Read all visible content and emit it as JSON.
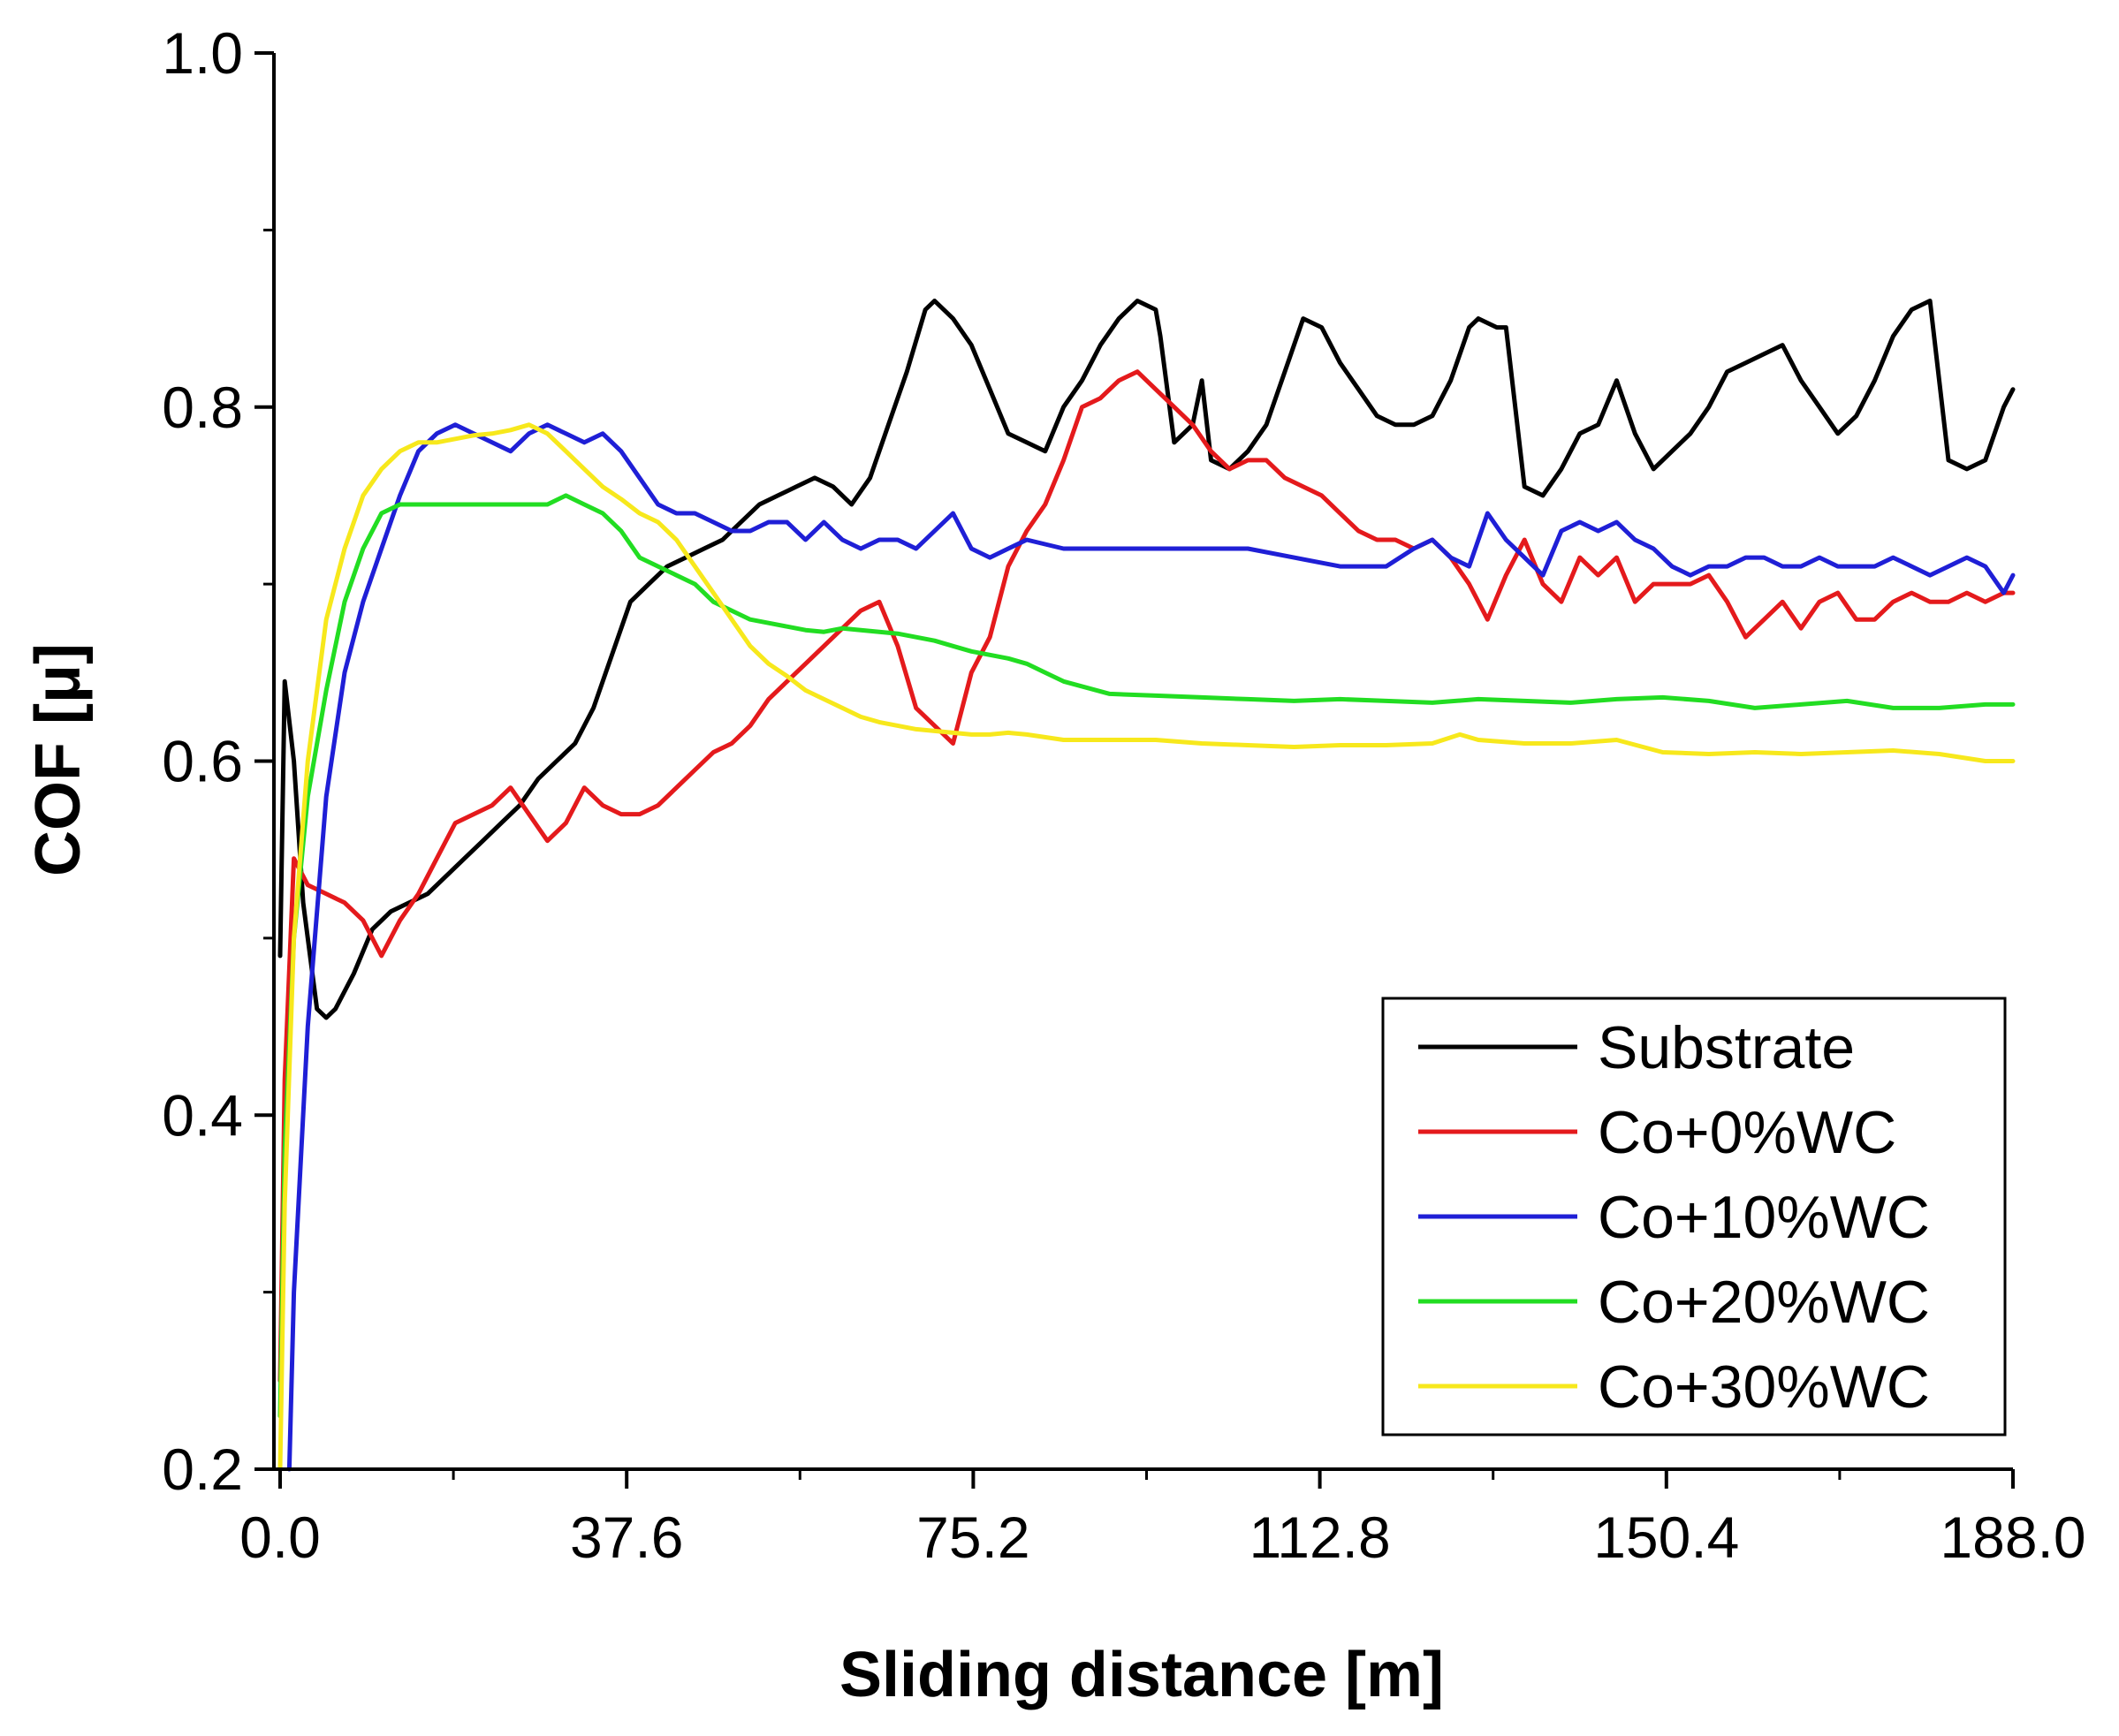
{
  "chart_data": {
    "type": "line",
    "title": "",
    "xlabel": "Sliding distance [m]",
    "ylabel": "COF [μ]",
    "xlim": [
      0,
      188.0
    ],
    "ylim": [
      0.2,
      1.0
    ],
    "x_ticks": [
      0.0,
      37.6,
      75.2,
      112.8,
      150.4,
      188.0
    ],
    "x_tick_labels": [
      "0.0",
      "37.6",
      "75.2",
      "112.8",
      "150.4",
      "188.0"
    ],
    "y_ticks": [
      0.2,
      0.4,
      0.6,
      0.8,
      1.0
    ],
    "y_tick_labels": [
      "0.2",
      "0.4",
      "0.6",
      "0.8",
      "1.0"
    ],
    "grid": false,
    "legend_position": "bottom-right",
    "series": [
      {
        "name": "Substrate",
        "color": "#000000",
        "x": [
          0,
          0.5,
          1.5,
          2.5,
          4,
          5,
          6,
          8,
          10,
          12,
          14,
          16,
          18,
          20,
          22,
          24,
          26,
          28,
          30,
          32,
          34,
          36,
          38,
          40,
          42,
          44,
          46,
          48,
          50,
          52,
          54,
          56,
          58,
          60,
          62,
          64,
          66,
          68,
          70,
          71,
          73,
          75,
          77,
          79,
          81,
          83,
          85,
          87,
          89,
          91,
          93,
          95,
          95.5,
          97,
          99,
          100,
          101,
          103,
          105,
          107,
          109,
          111,
          113,
          115,
          117,
          119,
          121,
          123,
          125,
          127,
          129,
          130,
          132,
          133,
          135,
          137,
          139,
          141,
          143,
          145,
          147,
          149,
          151,
          153,
          155,
          157,
          159,
          161,
          163,
          165,
          167,
          169,
          171,
          173,
          175,
          177,
          179,
          181,
          183,
          185,
          187,
          188
        ],
        "values": [
          0.49,
          0.645,
          0.6,
          0.52,
          0.46,
          0.455,
          0.46,
          0.48,
          0.505,
          0.515,
          0.52,
          0.525,
          0.535,
          0.545,
          0.555,
          0.565,
          0.575,
          0.59,
          0.6,
          0.61,
          0.63,
          0.66,
          0.69,
          0.7,
          0.71,
          0.715,
          0.72,
          0.725,
          0.735,
          0.745,
          0.75,
          0.755,
          0.76,
          0.755,
          0.745,
          0.76,
          0.79,
          0.82,
          0.855,
          0.86,
          0.85,
          0.835,
          0.81,
          0.785,
          0.78,
          0.775,
          0.8,
          0.815,
          0.835,
          0.85,
          0.86,
          0.855,
          0.84,
          0.78,
          0.79,
          0.815,
          0.77,
          0.765,
          0.775,
          0.79,
          0.82,
          0.85,
          0.845,
          0.825,
          0.81,
          0.795,
          0.79,
          0.79,
          0.795,
          0.815,
          0.845,
          0.85,
          0.845,
          0.845,
          0.755,
          0.75,
          0.765,
          0.785,
          0.79,
          0.815,
          0.785,
          0.765,
          0.775,
          0.785,
          0.8,
          0.82,
          0.825,
          0.83,
          0.835,
          0.815,
          0.8,
          0.785,
          0.795,
          0.815,
          0.84,
          0.855,
          0.86,
          0.77,
          0.765,
          0.77,
          0.8,
          0.81
        ]
      },
      {
        "name": "Co+0%WC",
        "color": "#e41a1c",
        "x": [
          0,
          0.5,
          1.5,
          3,
          5,
          7,
          9,
          11,
          13,
          15,
          17,
          19,
          21,
          23,
          25,
          27,
          29,
          31,
          33,
          35,
          37,
          39,
          41,
          43,
          45,
          47,
          49,
          51,
          53,
          55,
          57,
          59,
          61,
          63,
          65,
          67,
          69,
          71,
          73,
          75,
          77,
          79,
          81,
          83,
          85,
          87,
          89,
          91,
          93,
          95,
          97,
          99,
          101,
          103,
          105,
          107,
          109,
          111,
          113,
          115,
          117,
          119,
          121,
          123,
          125,
          127,
          129,
          131,
          133,
          135,
          137,
          139,
          141,
          143,
          145,
          147,
          149,
          151,
          153,
          155,
          157,
          159,
          161,
          163,
          165,
          167,
          169,
          171,
          173,
          175,
          177,
          179,
          181,
          183,
          185,
          187,
          188
        ],
        "values": [
          0.25,
          0.42,
          0.545,
          0.53,
          0.525,
          0.52,
          0.51,
          0.49,
          0.51,
          0.525,
          0.545,
          0.565,
          0.57,
          0.575,
          0.585,
          0.57,
          0.555,
          0.565,
          0.585,
          0.575,
          0.57,
          0.57,
          0.575,
          0.585,
          0.595,
          0.605,
          0.61,
          0.62,
          0.635,
          0.645,
          0.655,
          0.665,
          0.675,
          0.685,
          0.69,
          0.665,
          0.63,
          0.62,
          0.61,
          0.65,
          0.67,
          0.71,
          0.73,
          0.745,
          0.77,
          0.8,
          0.805,
          0.815,
          0.82,
          0.81,
          0.8,
          0.79,
          0.775,
          0.765,
          0.77,
          0.77,
          0.76,
          0.755,
          0.75,
          0.74,
          0.73,
          0.725,
          0.725,
          0.72,
          0.725,
          0.715,
          0.7,
          0.68,
          0.705,
          0.725,
          0.7,
          0.69,
          0.715,
          0.705,
          0.715,
          0.69,
          0.7,
          0.7,
          0.7,
          0.705,
          0.69,
          0.67,
          0.68,
          0.69,
          0.675,
          0.69,
          0.695,
          0.68,
          0.68,
          0.69,
          0.695,
          0.69,
          0.69,
          0.695,
          0.69,
          0.695,
          0.695
        ]
      },
      {
        "name": "Co+10%WC",
        "color": "#1f1fd6",
        "x": [
          1,
          1.5,
          3,
          5,
          7,
          9,
          11,
          13,
          15,
          17,
          19,
          21,
          23,
          25,
          27,
          29,
          31,
          33,
          35,
          37,
          39,
          41,
          43,
          45,
          47,
          49,
          51,
          53,
          55,
          57,
          59,
          61,
          63,
          65,
          67,
          69,
          71,
          73,
          75,
          77,
          79,
          81,
          85,
          90,
          95,
          100,
          105,
          110,
          115,
          120,
          123,
          125,
          127,
          129,
          131,
          133,
          135,
          137,
          139,
          141,
          143,
          145,
          147,
          149,
          151,
          153,
          155,
          157,
          159,
          161,
          163,
          165,
          167,
          169,
          171,
          173,
          175,
          177,
          179,
          181,
          183,
          185,
          187,
          188
        ],
        "values": [
          0.2,
          0.3,
          0.45,
          0.58,
          0.65,
          0.69,
          0.72,
          0.75,
          0.775,
          0.785,
          0.79,
          0.785,
          0.78,
          0.775,
          0.785,
          0.79,
          0.785,
          0.78,
          0.785,
          0.775,
          0.76,
          0.745,
          0.74,
          0.74,
          0.735,
          0.73,
          0.73,
          0.735,
          0.735,
          0.725,
          0.735,
          0.725,
          0.72,
          0.725,
          0.725,
          0.72,
          0.73,
          0.74,
          0.72,
          0.715,
          0.72,
          0.725,
          0.72,
          0.72,
          0.72,
          0.72,
          0.72,
          0.715,
          0.71,
          0.71,
          0.72,
          0.725,
          0.715,
          0.71,
          0.74,
          0.725,
          0.715,
          0.705,
          0.73,
          0.735,
          0.73,
          0.735,
          0.725,
          0.72,
          0.71,
          0.705,
          0.71,
          0.71,
          0.715,
          0.715,
          0.71,
          0.71,
          0.715,
          0.71,
          0.71,
          0.71,
          0.715,
          0.71,
          0.705,
          0.71,
          0.715,
          0.71,
          0.695,
          0.705
        ]
      },
      {
        "name": "Co+20%WC",
        "color": "#22dd22",
        "x": [
          0,
          0.5,
          1.5,
          3,
          5,
          7,
          9,
          11,
          13,
          15,
          17,
          19,
          21,
          23,
          25,
          27,
          29,
          31,
          33,
          35,
          37,
          39,
          41,
          43,
          45,
          47,
          49,
          51,
          53,
          55,
          57,
          59,
          61,
          63,
          65,
          67,
          69,
          71,
          73,
          75,
          77,
          79,
          81,
          85,
          90,
          95,
          100,
          105,
          110,
          115,
          120,
          125,
          130,
          135,
          140,
          145,
          150,
          155,
          160,
          165,
          170,
          175,
          180,
          185,
          188
        ],
        "values": [
          0.23,
          0.38,
          0.5,
          0.58,
          0.64,
          0.69,
          0.72,
          0.74,
          0.745,
          0.745,
          0.745,
          0.745,
          0.745,
          0.745,
          0.745,
          0.745,
          0.745,
          0.75,
          0.745,
          0.74,
          0.73,
          0.715,
          0.71,
          0.705,
          0.7,
          0.69,
          0.685,
          0.68,
          0.678,
          0.676,
          0.674,
          0.673,
          0.675,
          0.674,
          0.673,
          0.672,
          0.67,
          0.668,
          0.665,
          0.662,
          0.66,
          0.658,
          0.655,
          0.645,
          0.638,
          0.637,
          0.636,
          0.635,
          0.634,
          0.635,
          0.634,
          0.633,
          0.635,
          0.634,
          0.633,
          0.635,
          0.636,
          0.634,
          0.63,
          0.632,
          0.634,
          0.63,
          0.63,
          0.632,
          0.632
        ]
      },
      {
        "name": "Co+30%WC",
        "color": "#f7e81c",
        "x": [
          0,
          0.5,
          1.5,
          3,
          5,
          7,
          9,
          11,
          13,
          15,
          17,
          19,
          21,
          23,
          25,
          27,
          29,
          31,
          33,
          35,
          37,
          39,
          41,
          43,
          45,
          47,
          49,
          51,
          53,
          55,
          57,
          59,
          61,
          63,
          65,
          67,
          69,
          71,
          73,
          75,
          77,
          79,
          81,
          85,
          90,
          95,
          100,
          105,
          110,
          115,
          120,
          125,
          128,
          130,
          135,
          140,
          145,
          150,
          155,
          160,
          165,
          170,
          175,
          180,
          185,
          188
        ],
        "values": [
          0.2,
          0.35,
          0.5,
          0.6,
          0.68,
          0.72,
          0.75,
          0.765,
          0.775,
          0.78,
          0.78,
          0.782,
          0.784,
          0.785,
          0.787,
          0.79,
          0.785,
          0.775,
          0.765,
          0.755,
          0.748,
          0.74,
          0.735,
          0.725,
          0.71,
          0.695,
          0.68,
          0.665,
          0.655,
          0.648,
          0.64,
          0.635,
          0.63,
          0.625,
          0.622,
          0.62,
          0.618,
          0.617,
          0.616,
          0.615,
          0.615,
          0.616,
          0.615,
          0.612,
          0.612,
          0.612,
          0.61,
          0.609,
          0.608,
          0.609,
          0.609,
          0.61,
          0.615,
          0.612,
          0.61,
          0.61,
          0.612,
          0.605,
          0.604,
          0.605,
          0.604,
          0.605,
          0.606,
          0.604,
          0.6,
          0.6
        ]
      }
    ]
  }
}
